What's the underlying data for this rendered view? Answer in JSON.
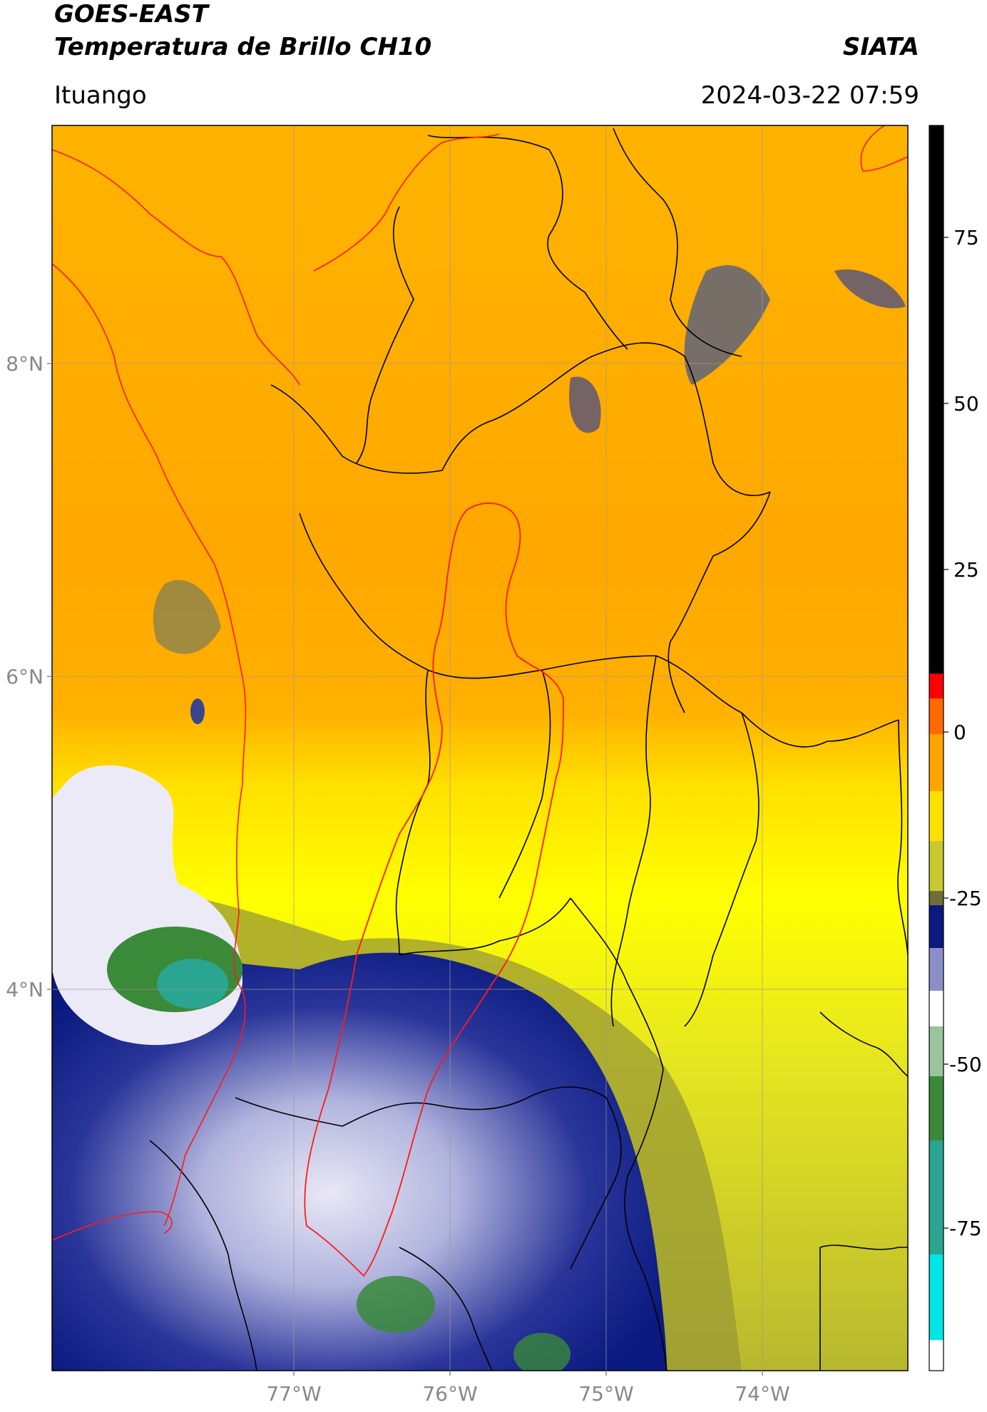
{
  "header": {
    "title_line1": "GOES-EAST",
    "title_line2": "Temperatura de Brillo CH10",
    "org": "SIATA",
    "location": "Ituango",
    "datetime": "2024-03-22 07:59"
  },
  "map": {
    "lat_ticks": [
      "8°N",
      "6°N",
      "4°N"
    ],
    "lon_ticks": [
      "77°W",
      "76°W",
      "75°W",
      "74°W"
    ],
    "boundary_color": "#000000",
    "basin_color": "#ff1a1a"
  },
  "colorbar": {
    "tick_labels": [
      "75",
      "50",
      "25",
      "0",
      "-25",
      "-50",
      "-75"
    ],
    "colors": [
      "#ffffff",
      "#00e5e5",
      "#2aa58f",
      "#3a8a3a",
      "#ffffff",
      "#8b8fc7",
      "#0a1a80",
      "#6e6e3a",
      "#c8c830",
      "#ffff00",
      "#ffa500",
      "#ff4400",
      "#ff0000",
      "#000000"
    ]
  }
}
